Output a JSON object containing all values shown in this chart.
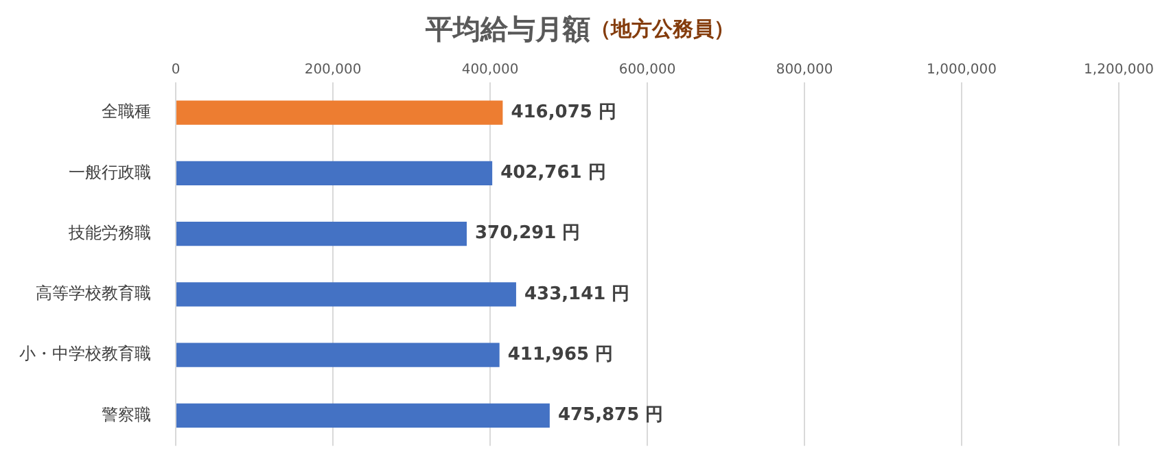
{
  "chart_data": {
    "type": "bar",
    "orientation": "horizontal",
    "title": "平均給与月額",
    "subtitle": "（地方公務員）",
    "categories": [
      "全職種",
      "一般行政職",
      "技能労務職",
      "高等学校教育職",
      "小・中学校教育職",
      "警察職"
    ],
    "values": [
      416075,
      402761,
      370291,
      433141,
      411965,
      475875
    ],
    "colors": [
      "#ed7d31",
      "#4472c4",
      "#4472c4",
      "#4472c4",
      "#4472c4",
      "#4472c4"
    ],
    "value_labels": [
      "416,075 円",
      "402,761 円",
      "370,291 円",
      "433,141 円",
      "411,965 円",
      "475,875 円"
    ],
    "xlim": [
      0,
      1200000
    ],
    "xticks": [
      {
        "value": 0,
        "label": "0"
      },
      {
        "value": 200000,
        "label": "200,000"
      },
      {
        "value": 400000,
        "label": "400,000"
      },
      {
        "value": 600000,
        "label": "600,000"
      },
      {
        "value": 800000,
        "label": "800,000"
      },
      {
        "value": 1000000,
        "label": "1,000,000"
      },
      {
        "value": 1200000,
        "label": "1,200,000"
      }
    ],
    "grid": "x",
    "legend": false
  }
}
